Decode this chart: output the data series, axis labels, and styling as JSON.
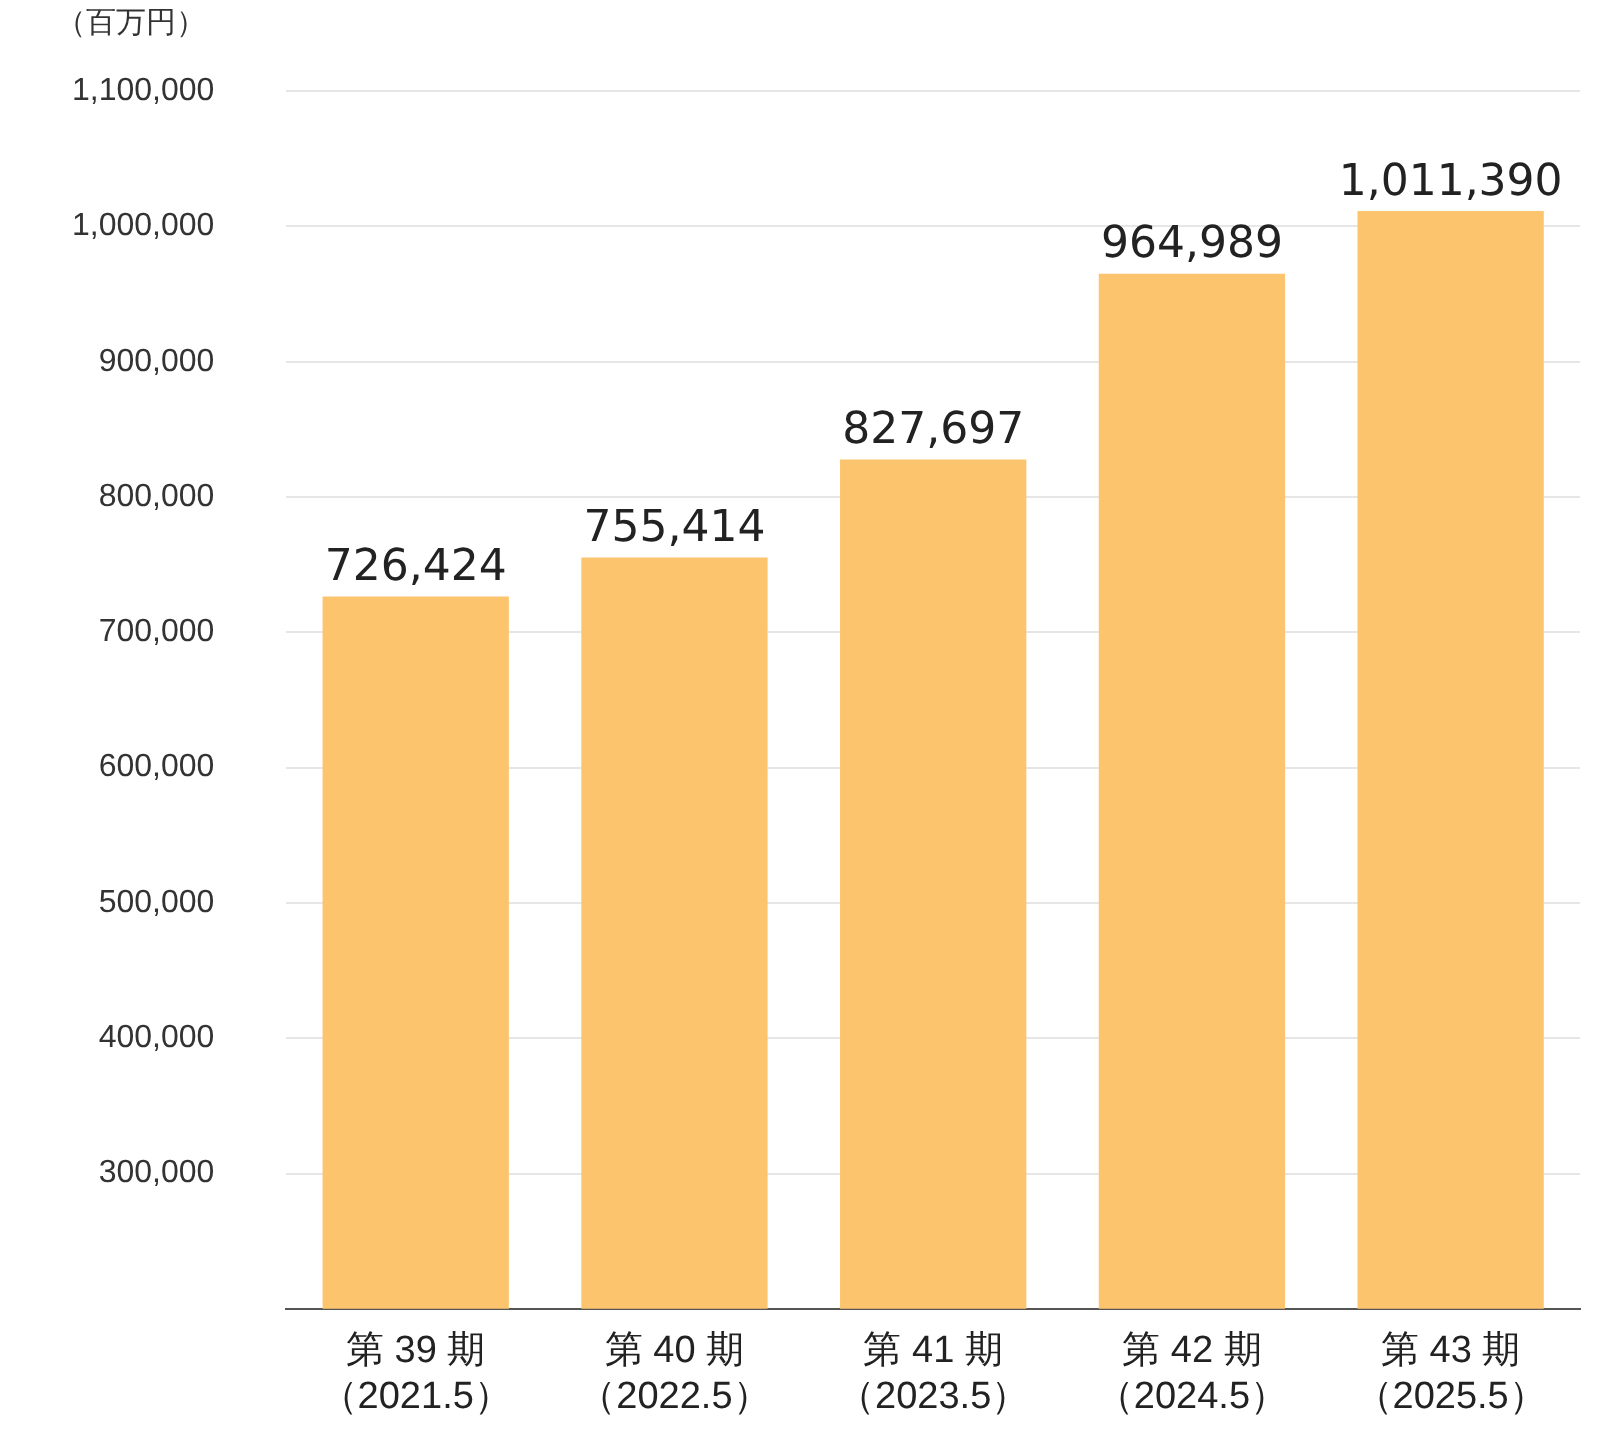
{
  "chart_data": {
    "type": "bar",
    "ylabel": "（百万円）",
    "categories": [
      "第 39 期（2021.5）",
      "第 40 期（2022.5）",
      "第 41 期（2023.5）",
      "第 42 期（2024.5）",
      "第 43 期（2025.5）"
    ],
    "values": [
      726424,
      755414,
      827697,
      964989,
      1011390
    ],
    "value_labels": [
      "726,424",
      "755,414",
      "827,697",
      "964,989",
      "1,011,390"
    ],
    "color": "#fdc46e",
    "ylim": [
      200000,
      1100000
    ],
    "yticks": [
      {
        "value": 300000,
        "label": "300,000"
      },
      {
        "value": 400000,
        "label": "400,000"
      },
      {
        "value": 500000,
        "label": "500,000"
      },
      {
        "value": 600000,
        "label": "600,000"
      },
      {
        "value": 700000,
        "label": "700,000"
      },
      {
        "value": 800000,
        "label": "800,000"
      },
      {
        "value": 900000,
        "label": "900,000"
      },
      {
        "value": 1000000,
        "label": "1,000,000"
      },
      {
        "value": 1100000,
        "label": "1,100,000"
      }
    ],
    "grid": "y"
  }
}
